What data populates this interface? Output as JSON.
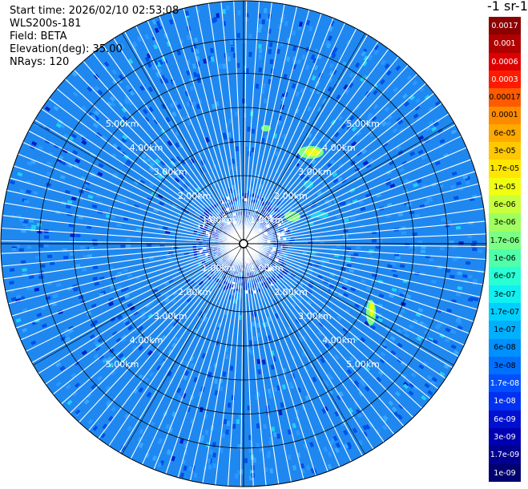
{
  "info": {
    "start_time": "Start time: 2026/02/10 02:53:08",
    "instrument": "WLS200s-181",
    "field": "Field: BETA",
    "elevation": "Elevation(deg): 35.00",
    "nrays": "NRays: 120"
  },
  "colorbar": {
    "title": "-1 sr-1",
    "levels": [
      {
        "label": "0.0017",
        "color": "#8b0000",
        "text": "#ffffff"
      },
      {
        "label": "0.001",
        "color": "#b00000",
        "text": "#ffffff"
      },
      {
        "label": "0.0006",
        "color": "#dd0000",
        "text": "#ffffff"
      },
      {
        "label": "0.0003",
        "color": "#ff1a00",
        "text": "#ffffff"
      },
      {
        "label": "0.00017",
        "color": "#ff5a00",
        "text": "#000000"
      },
      {
        "label": "0.0001",
        "color": "#ff8a00",
        "text": "#000000"
      },
      {
        "label": "6e-05",
        "color": "#ffa800",
        "text": "#000000"
      },
      {
        "label": "3e-05",
        "color": "#ffc800",
        "text": "#000000"
      },
      {
        "label": "1.7e-05",
        "color": "#ffe600",
        "text": "#000000"
      },
      {
        "label": "1e-05",
        "color": "#f0ff10",
        "text": "#000000"
      },
      {
        "label": "6e-06",
        "color": "#c8ff3c",
        "text": "#000000"
      },
      {
        "label": "3e-06",
        "color": "#a0ff60",
        "text": "#000000"
      },
      {
        "label": "1.7e-06",
        "color": "#7cff84",
        "text": "#000000"
      },
      {
        "label": "1e-06",
        "color": "#50ffaa",
        "text": "#000000"
      },
      {
        "label": "6e-07",
        "color": "#28ffd4",
        "text": "#000000"
      },
      {
        "label": "3e-07",
        "color": "#10f0f0",
        "text": "#000000"
      },
      {
        "label": "1.7e-07",
        "color": "#00d0ff",
        "text": "#000000"
      },
      {
        "label": "1e-07",
        "color": "#00b0ff",
        "text": "#000000"
      },
      {
        "label": "6e-08",
        "color": "#0090ff",
        "text": "#000000"
      },
      {
        "label": "3e-08",
        "color": "#0070ff",
        "text": "#000000"
      },
      {
        "label": "1.7e-08",
        "color": "#0050ff",
        "text": "#ffffff"
      },
      {
        "label": "1e-08",
        "color": "#0030f0",
        "text": "#ffffff"
      },
      {
        "label": "6e-09",
        "color": "#0010d0",
        "text": "#ffffff"
      },
      {
        "label": "3e-09",
        "color": "#0000b0",
        "text": "#ffffff"
      },
      {
        "label": "1.7e-09",
        "color": "#000090",
        "text": "#ffffff"
      },
      {
        "label": "1e-09",
        "color": "#000070",
        "text": "#ffffff"
      }
    ]
  },
  "range_rings": [
    "1.00km",
    "2.00km",
    "3.00km",
    "4.00km",
    "5.00km"
  ],
  "palette": {
    "base_blue": "#1e88f0",
    "light_blue": "#36a8ff",
    "dark_blue": "#0050e8",
    "deep_blue": "#0020c8",
    "cyan": "#20d0f0",
    "green": "#7cff84",
    "yellow": "#f0ff10",
    "grid": "#000000"
  }
}
